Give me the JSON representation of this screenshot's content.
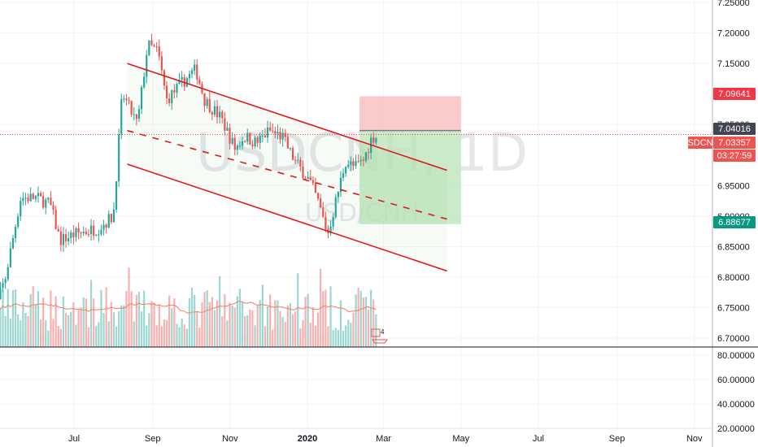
{
  "watermark": {
    "big": "USDCNH, 1D",
    "small": "USD/CNH"
  },
  "colors": {
    "up": "#26a69a",
    "down": "#ef5350",
    "channel": "#e01919",
    "stop_zone": "#f9b4b4",
    "target_zone": "#b8e3b8",
    "current_price_line": "#ef5350",
    "ma_line": "#f08060"
  },
  "axis_price": {
    "ticks": [
      "6.70000",
      "6.75000",
      "6.80000",
      "6.85000",
      "6.90000",
      "6.95000",
      "7.05000",
      "7.15000",
      "7.20000",
      "7.25000"
    ],
    "labels": [
      {
        "text": "7.09641",
        "value": 7.09641,
        "color": "#f23645",
        "name": "stop-price-badge"
      },
      {
        "text": "7.04016",
        "value": 7.04016,
        "color": "#434651",
        "name": "entry-price-badge"
      },
      {
        "text": "USDCNH",
        "value": 7.03357,
        "color": "#ef5350",
        "name": "symbol-badge"
      },
      {
        "text": "7.03357",
        "value": 7.03357,
        "color": "#ef5350",
        "name": "last-price-badge"
      },
      {
        "text": "03:27:59",
        "value": 7.0103,
        "color": "#ef5350",
        "name": "countdown-badge"
      },
      {
        "text": "6.88677",
        "value": 6.88677,
        "color": "#089981",
        "name": "target-price-badge"
      }
    ]
  },
  "axis_volume": {
    "ticks": [
      "80.00000",
      "60.00000",
      "40.00000",
      "20.00000"
    ]
  },
  "axis_time": {
    "ticks": [
      {
        "text": "Jul",
        "bold": false
      },
      {
        "text": "Sep",
        "bold": false
      },
      {
        "text": "Nov",
        "bold": false
      },
      {
        "text": "2020",
        "bold": true
      },
      {
        "text": "Mar",
        "bold": false
      },
      {
        "text": "May",
        "bold": false
      },
      {
        "text": "Jul",
        "bold": false
      },
      {
        "text": "Sep",
        "bold": false
      },
      {
        "text": "Nov",
        "bold": false
      }
    ]
  },
  "chart_data": {
    "type": "candlestick",
    "symbol": "USDCNH",
    "interval": "1D",
    "ylim": [
      6.69,
      7.26
    ],
    "last_price": 7.03357,
    "long_position": {
      "entry": 7.04016,
      "stop": 7.09641,
      "target": 6.88677
    },
    "channel": {
      "upper": [
        {
          "date": "2019-08-12",
          "price": 7.15
        },
        {
          "date": "2020-04-20",
          "price": 6.975
        }
      ],
      "middle": [
        {
          "date": "2019-08-12",
          "price": 7.04
        },
        {
          "date": "2020-04-20",
          "price": 6.895
        }
      ],
      "lower": [
        {
          "date": "2019-08-12",
          "price": 6.985
        },
        {
          "date": "2020-04-20",
          "price": 6.81
        }
      ]
    },
    "price_path": [
      {
        "date": "2019-04-26",
        "price": 6.72
      },
      {
        "date": "2019-05-08",
        "price": 6.8
      },
      {
        "date": "2019-05-20",
        "price": 6.93
      },
      {
        "date": "2019-06-01",
        "price": 6.93
      },
      {
        "date": "2019-06-12",
        "price": 6.92
      },
      {
        "date": "2019-06-20",
        "price": 6.86
      },
      {
        "date": "2019-07-01",
        "price": 6.87
      },
      {
        "date": "2019-07-20",
        "price": 6.88
      },
      {
        "date": "2019-08-01",
        "price": 6.9
      },
      {
        "date": "2019-08-08",
        "price": 7.1
      },
      {
        "date": "2019-08-20",
        "price": 7.05
      },
      {
        "date": "2019-08-28",
        "price": 7.18
      },
      {
        "date": "2019-09-05",
        "price": 7.17
      },
      {
        "date": "2019-09-12",
        "price": 7.09
      },
      {
        "date": "2019-09-25",
        "price": 7.12
      },
      {
        "date": "2019-10-05",
        "price": 7.14
      },
      {
        "date": "2019-10-12",
        "price": 7.09
      },
      {
        "date": "2019-10-25",
        "price": 7.06
      },
      {
        "date": "2019-11-05",
        "price": 7.01
      },
      {
        "date": "2019-11-12",
        "price": 7.03
      },
      {
        "date": "2019-11-22",
        "price": 7.02
      },
      {
        "date": "2019-12-02",
        "price": 7.04
      },
      {
        "date": "2019-12-12",
        "price": 7.03
      },
      {
        "date": "2019-12-22",
        "price": 6.99
      },
      {
        "date": "2020-01-02",
        "price": 6.96
      },
      {
        "date": "2020-01-10",
        "price": 6.92
      },
      {
        "date": "2020-01-17",
        "price": 6.87
      },
      {
        "date": "2020-01-24",
        "price": 6.93
      },
      {
        "date": "2020-01-31",
        "price": 6.99
      },
      {
        "date": "2020-02-07",
        "price": 6.98
      },
      {
        "date": "2020-02-14",
        "price": 6.99
      },
      {
        "date": "2020-02-21",
        "price": 7.03
      },
      {
        "date": "2020-02-25",
        "price": 7.03
      }
    ],
    "volume_level": 70,
    "ma_level": 56
  }
}
